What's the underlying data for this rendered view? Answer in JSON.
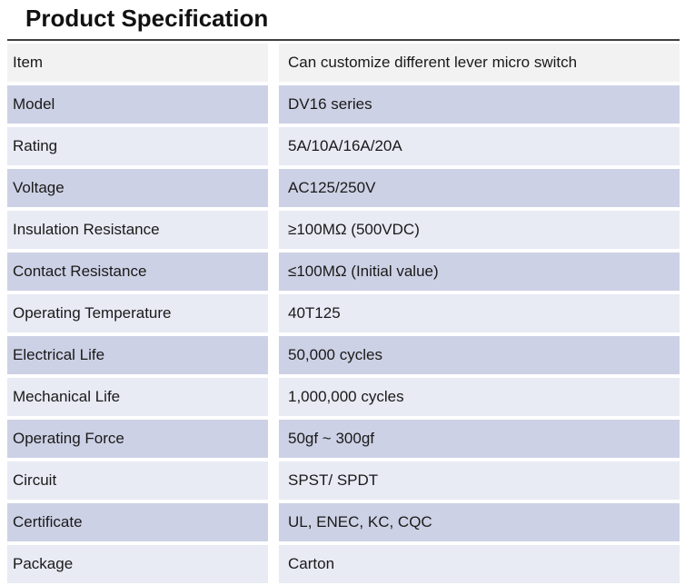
{
  "page": {
    "title": "Product Specification"
  },
  "colors": {
    "header_row_bg": "#f2f2f3",
    "row_light_bg": "#e8eaf4",
    "row_dark_bg": "#cdd1e5",
    "text_color": "#1a1a1a",
    "border_color": "#3f3f3f"
  },
  "table": {
    "rows": [
      {
        "label": "Item",
        "value": "Can customize different lever micro switch"
      },
      {
        "label": "Model",
        "value": "DV16 series"
      },
      {
        "label": "Rating",
        "value": "5A/10A/16A/20A"
      },
      {
        "label": "Voltage",
        "value": "AC125/250V"
      },
      {
        "label": "Insulation Resistance",
        "value": "≥100MΩ (500VDC)"
      },
      {
        "label": "Contact Resistance",
        "value": "≤100MΩ (Initial value)"
      },
      {
        "label": "Operating Temperature",
        "value": "40T125"
      },
      {
        "label": "Electrical Life",
        "value": "50,000 cycles"
      },
      {
        "label": "Mechanical Life",
        "value": "1,000,000 cycles"
      },
      {
        "label": "Operating Force",
        "value": "50gf ~ 300gf"
      },
      {
        "label": "Circuit",
        "value": "SPST/ SPDT"
      },
      {
        "label": "Certificate",
        "value": "UL, ENEC, KC, CQC"
      },
      {
        "label": "Package",
        "value": "Carton"
      }
    ]
  }
}
